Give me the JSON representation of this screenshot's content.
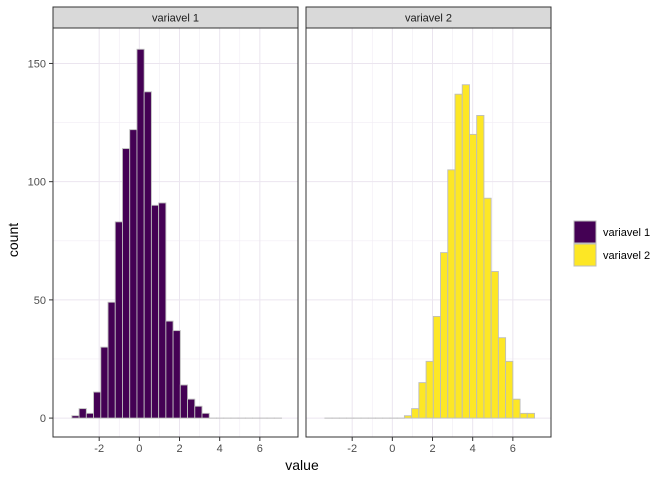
{
  "chart_data": {
    "type": "bar",
    "xlabel": "value",
    "ylabel": "count",
    "bin_width": 0.36,
    "xlim": [
      -4.3,
      7.9
    ],
    "ylim": [
      -8,
      165
    ],
    "x_ticks": [
      -2,
      0,
      2,
      4,
      6
    ],
    "x_tick_labels": [
      "-2",
      "0",
      "2",
      "4",
      "6"
    ],
    "y_ticks": [
      0,
      50,
      100,
      150
    ],
    "y_tick_labels": [
      "0",
      "50",
      "100",
      "150"
    ],
    "grid": true,
    "legend_position": "right",
    "panels": [
      {
        "strip_label": "variavel 1",
        "color": "#440154",
        "bin_centers": [
          -3.18,
          -2.82,
          -2.46,
          -2.1,
          -1.74,
          -1.38,
          -1.02,
          -0.66,
          -0.3,
          0.06,
          0.42,
          0.78,
          1.14,
          1.5,
          1.86,
          2.22,
          2.58,
          2.94,
          3.3,
          3.66,
          4.02,
          4.38,
          4.74,
          5.1,
          5.46,
          5.82,
          6.18,
          6.54,
          6.9
        ],
        "values": [
          1,
          4,
          2,
          11,
          30,
          49,
          83,
          114,
          122,
          156,
          138,
          90,
          91,
          41,
          37,
          14,
          8,
          5,
          2,
          0,
          0,
          0,
          0,
          0,
          0,
          0,
          0,
          0,
          0
        ]
      },
      {
        "strip_label": "variavel 2",
        "color": "#fde725",
        "bin_centers": [
          -3.18,
          -2.82,
          -2.46,
          -2.1,
          -1.74,
          -1.38,
          -1.02,
          -0.66,
          -0.3,
          0.06,
          0.42,
          0.78,
          1.14,
          1.5,
          1.86,
          2.22,
          2.58,
          2.94,
          3.3,
          3.66,
          4.02,
          4.38,
          4.74,
          5.1,
          5.46,
          5.82,
          6.18,
          6.54,
          6.9
        ],
        "values": [
          0,
          0,
          0,
          0,
          0,
          0,
          0,
          0,
          0,
          0,
          0,
          1,
          4,
          15,
          24,
          43,
          70,
          105,
          137,
          141,
          120,
          128,
          93,
          62,
          34,
          24,
          8,
          2,
          2
        ]
      }
    ],
    "legend": [
      {
        "label": "variavel 1",
        "color": "#440154"
      },
      {
        "label": "variavel 2",
        "color": "#fde725"
      }
    ]
  }
}
